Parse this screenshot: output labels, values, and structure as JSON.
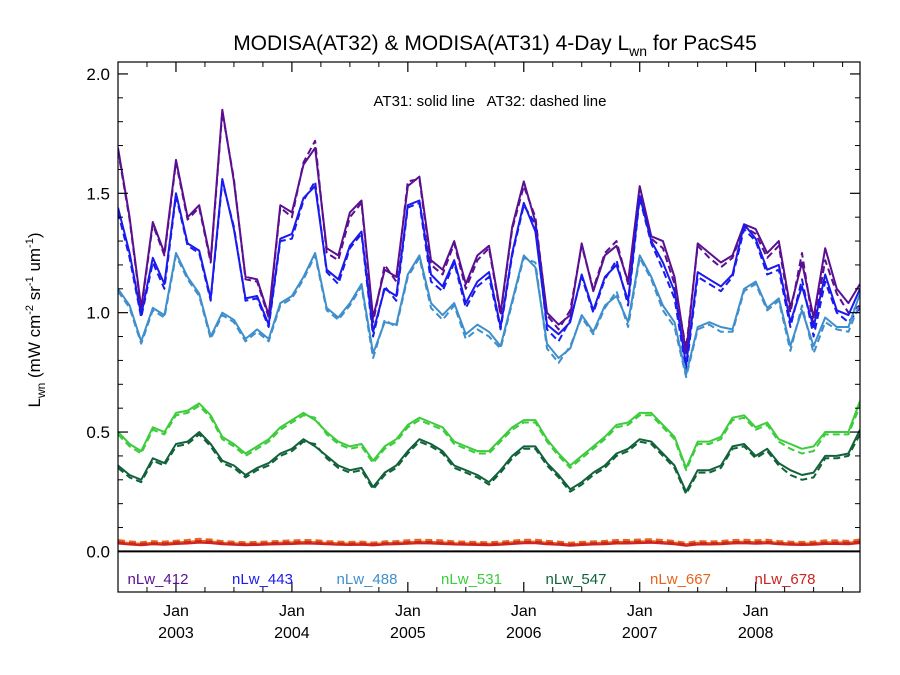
{
  "chart_data": {
    "type": "line",
    "title": {
      "main": "MODISA(AT32) & MODISA(AT31) 4-Day L",
      "sub": "wn",
      "tail": " for PacS45"
    },
    "ylabel": {
      "l": "L",
      "wn": "wn",
      "units_open": " (mW cm",
      "e1": "-2",
      "sr": " sr",
      "e2": "-1",
      "um": " um",
      "e3": "-1",
      "close": ")"
    },
    "annotation": "AT31: solid line   AT32: dashed line",
    "xlim": [
      2002.5,
      2008.9
    ],
    "ylim": [
      -0.17,
      2.05
    ],
    "yticks": [
      0.0,
      0.5,
      1.0,
      1.5,
      2.0
    ],
    "ytick_labels": [
      "0.0",
      "0.5",
      "1.0",
      "1.5",
      "2.0"
    ],
    "xticks": [
      {
        "x": 2003.0,
        "month": "Jan",
        "year": "2003"
      },
      {
        "x": 2004.0,
        "month": "Jan",
        "year": "2004"
      },
      {
        "x": 2005.0,
        "month": "Jan",
        "year": "2005"
      },
      {
        "x": 2006.0,
        "month": "Jan",
        "year": "2006"
      },
      {
        "x": 2007.0,
        "month": "Jan",
        "year": "2007"
      },
      {
        "x": 2008.0,
        "month": "Jan",
        "year": "2008"
      }
    ],
    "zero_line": 0.0,
    "legend": [
      {
        "name": "nLw_412",
        "color": "#5b0f91"
      },
      {
        "name": "nLw_443",
        "color": "#1a1aee"
      },
      {
        "name": "nLw_488",
        "color": "#3f8fcc"
      },
      {
        "name": "nLw_531",
        "color": "#3ccc3c"
      },
      {
        "name": "nLw_547",
        "color": "#11623a"
      },
      {
        "name": "nLw_667",
        "color": "#e8621c"
      },
      {
        "name": "nLw_678",
        "color": "#cc2222"
      }
    ],
    "x": [
      2002.5,
      2002.6,
      2002.7,
      2002.8,
      2002.9,
      2003.0,
      2003.1,
      2003.2,
      2003.3,
      2003.4,
      2003.5,
      2003.6,
      2003.7,
      2003.8,
      2003.9,
      2004.0,
      2004.1,
      2004.2,
      2004.3,
      2004.4,
      2004.5,
      2004.6,
      2004.7,
      2004.8,
      2004.9,
      2005.0,
      2005.1,
      2005.2,
      2005.3,
      2005.4,
      2005.5,
      2005.6,
      2005.7,
      2005.8,
      2005.9,
      2006.0,
      2006.1,
      2006.2,
      2006.3,
      2006.4,
      2006.5,
      2006.6,
      2006.7,
      2006.8,
      2006.9,
      2007.0,
      2007.1,
      2007.2,
      2007.3,
      2007.4,
      2007.5,
      2007.6,
      2007.7,
      2007.8,
      2007.9,
      2008.0,
      2008.1,
      2008.2,
      2008.3,
      2008.4,
      2008.5,
      2008.6,
      2008.7,
      2008.8,
      2008.9
    ],
    "series": [
      {
        "name": "nLw_412",
        "color": "#5b0f91",
        "solid": [
          1.69,
          1.4,
          1.02,
          1.38,
          1.25,
          1.64,
          1.4,
          1.45,
          1.22,
          1.85,
          1.55,
          1.15,
          1.14,
          0.99,
          1.45,
          1.42,
          1.62,
          1.69,
          1.27,
          1.24,
          1.42,
          1.47,
          0.98,
          1.18,
          1.15,
          1.53,
          1.57,
          1.22,
          1.18,
          1.3,
          1.12,
          1.24,
          1.28,
          1.0,
          1.36,
          1.55,
          1.38,
          1.0,
          0.95,
          0.99,
          1.29,
          1.09,
          1.24,
          1.28,
          1.13,
          1.53,
          1.32,
          1.3,
          1.15,
          0.83,
          1.29,
          1.25,
          1.21,
          1.24,
          1.37,
          1.35,
          1.25,
          1.3,
          1.02,
          1.21,
          0.98,
          1.27,
          1.1,
          1.04,
          1.12
        ],
        "dashed": [
          1.68,
          1.39,
          1.01,
          1.37,
          1.24,
          1.63,
          1.39,
          1.44,
          1.21,
          1.84,
          1.56,
          1.14,
          1.13,
          0.98,
          1.44,
          1.4,
          1.63,
          1.72,
          1.25,
          1.22,
          1.4,
          1.46,
          0.96,
          1.2,
          1.13,
          1.55,
          1.56,
          1.2,
          1.16,
          1.29,
          1.1,
          1.22,
          1.27,
          0.99,
          1.35,
          1.53,
          1.4,
          0.99,
          0.93,
          1.01,
          1.28,
          1.1,
          1.25,
          1.3,
          1.12,
          1.52,
          1.31,
          1.27,
          1.12,
          0.85,
          1.28,
          1.23,
          1.19,
          1.23,
          1.36,
          1.33,
          1.23,
          1.28,
          1.0,
          1.25,
          0.94,
          1.22,
          1.08,
          1.0,
          1.03
        ]
      },
      {
        "name": "nLw_443",
        "color": "#1a1aee",
        "solid": [
          1.44,
          1.25,
          0.99,
          1.23,
          1.12,
          1.5,
          1.29,
          1.26,
          1.06,
          1.56,
          1.35,
          1.06,
          1.07,
          0.95,
          1.31,
          1.33,
          1.48,
          1.53,
          1.18,
          1.14,
          1.28,
          1.34,
          0.92,
          1.1,
          1.07,
          1.45,
          1.47,
          1.16,
          1.11,
          1.22,
          1.04,
          1.13,
          1.17,
          0.94,
          1.25,
          1.46,
          1.34,
          0.95,
          0.91,
          0.96,
          1.16,
          1.01,
          1.15,
          1.2,
          1.05,
          1.49,
          1.3,
          1.21,
          1.09,
          0.78,
          1.17,
          1.14,
          1.11,
          1.16,
          1.37,
          1.31,
          1.18,
          1.2,
          0.96,
          1.11,
          0.94,
          1.16,
          1.01,
          0.99,
          1.1
        ],
        "dashed": [
          1.42,
          1.23,
          0.98,
          1.21,
          1.1,
          1.49,
          1.28,
          1.25,
          1.05,
          1.55,
          1.36,
          1.05,
          1.06,
          0.94,
          1.3,
          1.31,
          1.47,
          1.55,
          1.17,
          1.12,
          1.27,
          1.33,
          0.9,
          1.11,
          1.05,
          1.44,
          1.46,
          1.13,
          1.09,
          1.21,
          1.02,
          1.11,
          1.15,
          0.93,
          1.24,
          1.45,
          1.37,
          0.93,
          0.88,
          0.97,
          1.15,
          1.0,
          1.14,
          1.22,
          1.03,
          1.48,
          1.29,
          1.18,
          1.06,
          0.76,
          1.15,
          1.12,
          1.09,
          1.15,
          1.35,
          1.3,
          1.16,
          1.18,
          0.94,
          1.14,
          0.9,
          1.13,
          1.0,
          0.96,
          1.02
        ]
      },
      {
        "name": "nLw_488",
        "color": "#3f8fcc",
        "solid": [
          1.1,
          1.03,
          0.88,
          1.02,
          0.99,
          1.25,
          1.15,
          1.08,
          0.9,
          1.0,
          0.97,
          0.89,
          0.93,
          0.89,
          1.04,
          1.07,
          1.15,
          1.25,
          1.02,
          0.98,
          1.04,
          1.12,
          0.83,
          0.96,
          0.95,
          1.16,
          1.24,
          1.04,
          0.99,
          1.04,
          0.91,
          0.95,
          0.92,
          0.86,
          1.05,
          1.24,
          1.19,
          0.87,
          0.81,
          0.85,
          0.99,
          0.92,
          1.03,
          1.07,
          0.96,
          1.24,
          1.15,
          1.03,
          0.96,
          0.74,
          0.94,
          0.96,
          0.94,
          0.93,
          1.1,
          1.13,
          1.02,
          1.06,
          0.86,
          1.01,
          0.86,
          0.98,
          0.94,
          0.94,
          1.08
        ],
        "dashed": [
          1.09,
          1.02,
          0.87,
          1.01,
          0.98,
          1.24,
          1.14,
          1.07,
          0.89,
          0.99,
          0.96,
          0.88,
          0.92,
          0.88,
          1.03,
          1.06,
          1.14,
          1.24,
          1.01,
          0.97,
          1.03,
          1.11,
          0.81,
          0.97,
          0.94,
          1.15,
          1.23,
          1.02,
          0.97,
          1.03,
          0.89,
          0.93,
          0.9,
          0.85,
          1.04,
          1.23,
          1.21,
          0.85,
          0.79,
          0.86,
          0.98,
          0.91,
          1.02,
          1.09,
          0.94,
          1.23,
          1.14,
          1.01,
          0.94,
          0.73,
          0.93,
          0.95,
          0.92,
          0.92,
          1.09,
          1.12,
          1.01,
          1.05,
          0.84,
          1.03,
          0.83,
          0.96,
          0.93,
          0.92,
          1.04
        ]
      },
      {
        "name": "nLw_531",
        "color": "#3ccc3c",
        "solid": [
          0.5,
          0.45,
          0.42,
          0.52,
          0.5,
          0.58,
          0.59,
          0.62,
          0.57,
          0.48,
          0.45,
          0.41,
          0.44,
          0.47,
          0.52,
          0.55,
          0.58,
          0.55,
          0.5,
          0.46,
          0.44,
          0.45,
          0.38,
          0.44,
          0.47,
          0.53,
          0.56,
          0.54,
          0.52,
          0.46,
          0.44,
          0.42,
          0.42,
          0.47,
          0.52,
          0.55,
          0.55,
          0.47,
          0.41,
          0.36,
          0.4,
          0.44,
          0.48,
          0.53,
          0.54,
          0.58,
          0.58,
          0.53,
          0.48,
          0.35,
          0.46,
          0.46,
          0.48,
          0.56,
          0.57,
          0.52,
          0.54,
          0.47,
          0.45,
          0.43,
          0.44,
          0.5,
          0.5,
          0.5,
          0.63
        ],
        "dashed": [
          0.49,
          0.44,
          0.41,
          0.51,
          0.49,
          0.57,
          0.58,
          0.61,
          0.56,
          0.47,
          0.44,
          0.4,
          0.43,
          0.46,
          0.51,
          0.54,
          0.57,
          0.56,
          0.49,
          0.45,
          0.43,
          0.44,
          0.37,
          0.43,
          0.46,
          0.52,
          0.55,
          0.53,
          0.51,
          0.45,
          0.43,
          0.41,
          0.41,
          0.46,
          0.51,
          0.54,
          0.54,
          0.46,
          0.4,
          0.35,
          0.39,
          0.43,
          0.47,
          0.52,
          0.53,
          0.57,
          0.57,
          0.52,
          0.47,
          0.34,
          0.45,
          0.45,
          0.47,
          0.55,
          0.56,
          0.51,
          0.53,
          0.46,
          0.43,
          0.41,
          0.42,
          0.49,
          0.49,
          0.49,
          0.61
        ]
      },
      {
        "name": "nLw_547",
        "color": "#11623a",
        "solid": [
          0.36,
          0.32,
          0.3,
          0.39,
          0.37,
          0.45,
          0.46,
          0.5,
          0.45,
          0.38,
          0.36,
          0.32,
          0.35,
          0.37,
          0.41,
          0.43,
          0.47,
          0.44,
          0.4,
          0.36,
          0.34,
          0.35,
          0.27,
          0.33,
          0.36,
          0.42,
          0.47,
          0.45,
          0.42,
          0.36,
          0.34,
          0.32,
          0.29,
          0.34,
          0.4,
          0.44,
          0.44,
          0.37,
          0.32,
          0.26,
          0.29,
          0.33,
          0.36,
          0.41,
          0.43,
          0.47,
          0.46,
          0.41,
          0.36,
          0.25,
          0.34,
          0.34,
          0.36,
          0.44,
          0.45,
          0.4,
          0.43,
          0.37,
          0.34,
          0.32,
          0.33,
          0.4,
          0.4,
          0.41,
          0.51
        ],
        "dashed": [
          0.35,
          0.31,
          0.29,
          0.38,
          0.36,
          0.44,
          0.45,
          0.49,
          0.44,
          0.37,
          0.35,
          0.31,
          0.34,
          0.36,
          0.4,
          0.42,
          0.46,
          0.45,
          0.39,
          0.35,
          0.33,
          0.34,
          0.26,
          0.32,
          0.35,
          0.41,
          0.46,
          0.44,
          0.41,
          0.35,
          0.33,
          0.31,
          0.28,
          0.33,
          0.39,
          0.43,
          0.43,
          0.36,
          0.31,
          0.25,
          0.28,
          0.32,
          0.35,
          0.4,
          0.42,
          0.46,
          0.45,
          0.4,
          0.35,
          0.24,
          0.33,
          0.33,
          0.35,
          0.43,
          0.44,
          0.39,
          0.42,
          0.36,
          0.32,
          0.3,
          0.31,
          0.39,
          0.39,
          0.4,
          0.49
        ]
      },
      {
        "name": "nLw_667",
        "color": "#e8621c",
        "solid": [
          0.04,
          0.035,
          0.032,
          0.036,
          0.034,
          0.038,
          0.04,
          0.045,
          0.042,
          0.036,
          0.034,
          0.032,
          0.033,
          0.035,
          0.037,
          0.038,
          0.04,
          0.039,
          0.036,
          0.034,
          0.033,
          0.034,
          0.031,
          0.035,
          0.036,
          0.039,
          0.041,
          0.04,
          0.038,
          0.035,
          0.034,
          0.033,
          0.032,
          0.034,
          0.038,
          0.041,
          0.041,
          0.037,
          0.034,
          0.03,
          0.033,
          0.035,
          0.037,
          0.04,
          0.04,
          0.042,
          0.043,
          0.04,
          0.037,
          0.03,
          0.036,
          0.035,
          0.036,
          0.04,
          0.041,
          0.039,
          0.041,
          0.036,
          0.034,
          0.033,
          0.034,
          0.038,
          0.038,
          0.037,
          0.042
        ],
        "dashed": [
          0.048,
          0.042,
          0.038,
          0.043,
          0.041,
          0.045,
          0.048,
          0.053,
          0.05,
          0.043,
          0.041,
          0.038,
          0.04,
          0.042,
          0.044,
          0.046,
          0.048,
          0.047,
          0.043,
          0.041,
          0.04,
          0.041,
          0.037,
          0.042,
          0.043,
          0.047,
          0.049,
          0.048,
          0.046,
          0.042,
          0.041,
          0.04,
          0.038,
          0.041,
          0.045,
          0.049,
          0.049,
          0.044,
          0.041,
          0.036,
          0.04,
          0.042,
          0.044,
          0.048,
          0.048,
          0.05,
          0.051,
          0.048,
          0.044,
          0.036,
          0.043,
          0.042,
          0.043,
          0.048,
          0.049,
          0.047,
          0.049,
          0.043,
          0.041,
          0.04,
          0.041,
          0.046,
          0.046,
          0.044,
          0.05
        ]
      },
      {
        "name": "nLw_678",
        "color": "#cc2222",
        "solid": [
          0.033,
          0.029,
          0.026,
          0.03,
          0.028,
          0.031,
          0.033,
          0.037,
          0.035,
          0.03,
          0.028,
          0.026,
          0.027,
          0.029,
          0.03,
          0.031,
          0.033,
          0.032,
          0.03,
          0.028,
          0.027,
          0.028,
          0.025,
          0.029,
          0.03,
          0.032,
          0.034,
          0.033,
          0.031,
          0.029,
          0.028,
          0.027,
          0.026,
          0.028,
          0.031,
          0.034,
          0.034,
          0.03,
          0.028,
          0.024,
          0.027,
          0.029,
          0.03,
          0.033,
          0.033,
          0.035,
          0.036,
          0.033,
          0.03,
          0.024,
          0.029,
          0.029,
          0.03,
          0.033,
          0.034,
          0.032,
          0.034,
          0.03,
          0.028,
          0.027,
          0.028,
          0.031,
          0.031,
          0.03,
          0.035
        ],
        "dashed": [
          0.039,
          0.034,
          0.031,
          0.035,
          0.033,
          0.037,
          0.039,
          0.043,
          0.041,
          0.035,
          0.033,
          0.031,
          0.032,
          0.034,
          0.036,
          0.037,
          0.039,
          0.038,
          0.035,
          0.033,
          0.032,
          0.033,
          0.03,
          0.034,
          0.035,
          0.038,
          0.04,
          0.039,
          0.037,
          0.034,
          0.033,
          0.032,
          0.031,
          0.033,
          0.037,
          0.04,
          0.04,
          0.036,
          0.033,
          0.029,
          0.032,
          0.034,
          0.036,
          0.039,
          0.039,
          0.041,
          0.042,
          0.039,
          0.036,
          0.029,
          0.035,
          0.034,
          0.035,
          0.039,
          0.04,
          0.038,
          0.04,
          0.035,
          0.033,
          0.032,
          0.033,
          0.037,
          0.037,
          0.036,
          0.041
        ]
      }
    ]
  }
}
